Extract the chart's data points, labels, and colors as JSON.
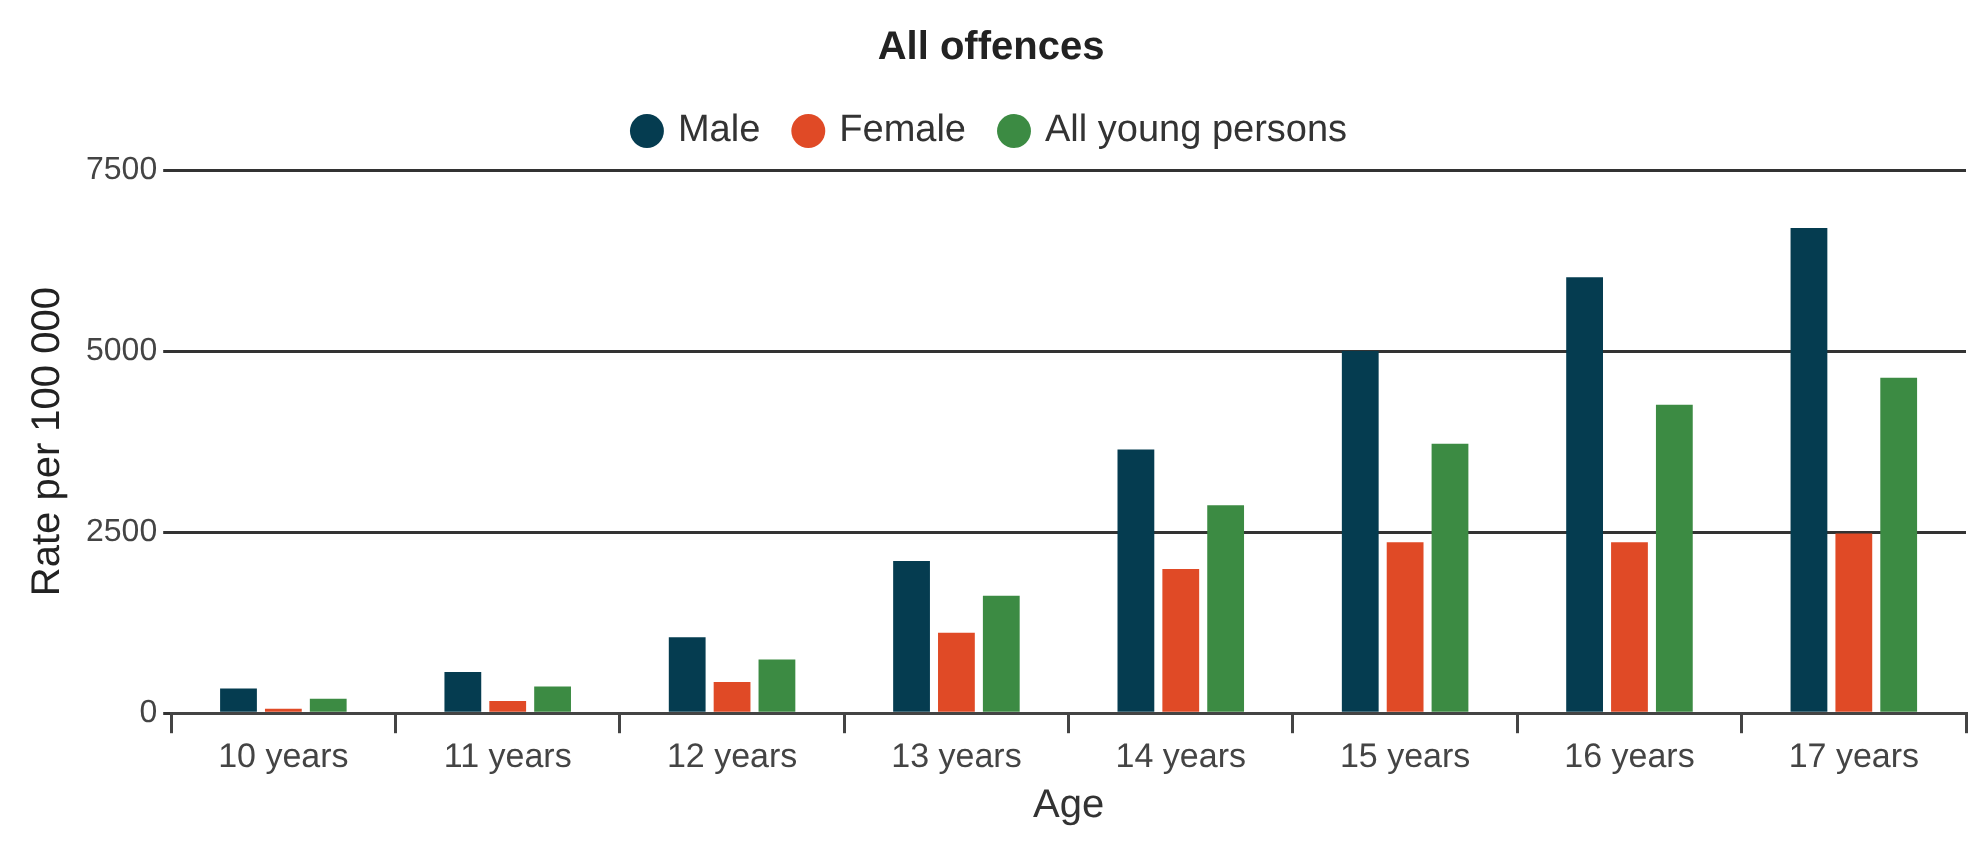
{
  "chart_data": {
    "type": "bar",
    "title": "All offences",
    "xlabel": "Age",
    "ylabel": "Rate per 100 000",
    "categories": [
      "10 years",
      "11 years",
      "12 years",
      "13 years",
      "14 years",
      "15 years",
      "16 years",
      "17 years"
    ],
    "series": [
      {
        "name": "Male",
        "color": "#053c50",
        "values": [
          340,
          570,
          1050,
          2100,
          3640,
          5000,
          6020,
          6700
        ]
      },
      {
        "name": "Female",
        "color": "#e04a26",
        "values": [
          60,
          170,
          430,
          1110,
          1990,
          2360,
          2360,
          2480
        ]
      },
      {
        "name": "All young persons",
        "color": "#3c8b43",
        "values": [
          200,
          370,
          740,
          1620,
          2870,
          3720,
          4260,
          4630
        ]
      }
    ],
    "ylim": [
      0,
      7500
    ],
    "yticks": [
      0,
      2500,
      5000,
      7500
    ],
    "grid": "y",
    "legend": "top"
  }
}
